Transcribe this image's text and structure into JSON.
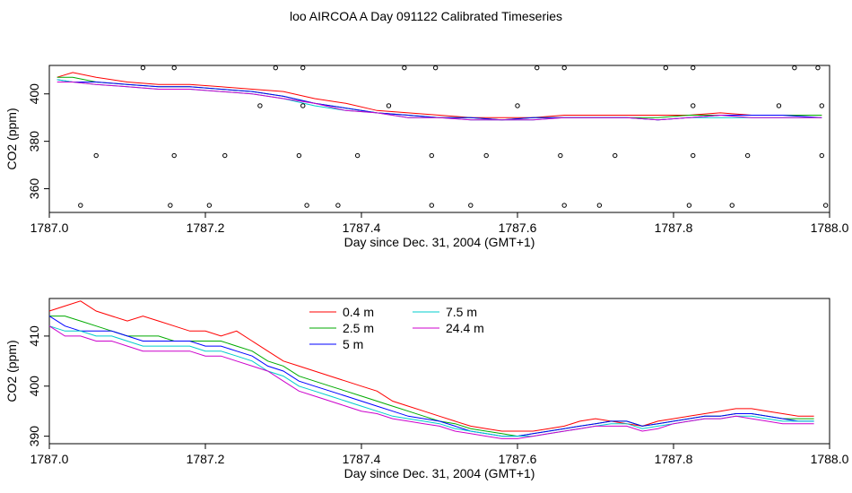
{
  "page_title": "loo AIRCOA A  Day 091122  Calibrated Timeseries",
  "chart_data": [
    {
      "type": "scatter",
      "title": "",
      "xlabel": "Day since Dec. 31, 2004 (GMT+1)",
      "ylabel": "CO2 (ppm)",
      "xlim": [
        1787.0,
        1788.0
      ],
      "ylim": [
        350,
        412
      ],
      "xticks": [
        "1787.0",
        "1787.2",
        "1787.4",
        "1787.6",
        "1787.8",
        "1788.0"
      ],
      "yticks": [
        "360",
        "380",
        "400"
      ],
      "series": [
        {
          "color": "#ff0000",
          "x": [
            1787.01,
            1787.03,
            1787.06,
            1787.1,
            1787.14,
            1787.18,
            1787.22,
            1787.26,
            1787.3,
            1787.34,
            1787.38,
            1787.42,
            1787.46,
            1787.5,
            1787.54,
            1787.58,
            1787.62,
            1787.66,
            1787.7,
            1787.74,
            1787.78,
            1787.82,
            1787.86,
            1787.9,
            1787.94,
            1787.99
          ],
          "y": [
            407,
            409,
            407,
            405,
            404,
            404,
            403,
            402,
            401,
            398,
            396,
            393,
            392,
            391,
            390,
            390,
            390,
            391,
            391,
            391,
            391,
            391,
            392,
            391,
            391,
            391
          ]
        },
        {
          "color": "#00aa00",
          "x": [
            1787.01,
            1787.03,
            1787.06,
            1787.1,
            1787.14,
            1787.18,
            1787.22,
            1787.26,
            1787.3,
            1787.34,
            1787.38,
            1787.42,
            1787.46,
            1787.5,
            1787.54,
            1787.58,
            1787.62,
            1787.66,
            1787.7,
            1787.74,
            1787.78,
            1787.82,
            1787.86,
            1787.9,
            1787.94,
            1787.99
          ],
          "y": [
            407,
            407,
            405,
            404,
            403,
            403,
            402,
            401,
            399,
            396,
            394,
            392,
            391,
            390,
            390,
            389,
            390,
            390,
            390,
            390,
            390,
            391,
            391,
            391,
            391,
            391
          ]
        },
        {
          "color": "#0000ff",
          "x": [
            1787.01,
            1787.03,
            1787.06,
            1787.1,
            1787.14,
            1787.18,
            1787.22,
            1787.26,
            1787.3,
            1787.34,
            1787.38,
            1787.42,
            1787.46,
            1787.5,
            1787.54,
            1787.58,
            1787.62,
            1787.66,
            1787.7,
            1787.74,
            1787.78,
            1787.82,
            1787.86,
            1787.9,
            1787.94,
            1787.99
          ],
          "y": [
            406,
            405,
            405,
            404,
            403,
            403,
            402,
            401,
            399,
            396,
            394,
            392,
            391,
            390,
            390,
            389,
            390,
            390,
            390,
            390,
            389,
            390,
            391,
            391,
            391,
            390
          ]
        },
        {
          "color": "#00cccc",
          "x": [
            1787.01,
            1787.03,
            1787.06,
            1787.1,
            1787.14,
            1787.18,
            1787.22,
            1787.26,
            1787.3,
            1787.34,
            1787.38,
            1787.42,
            1787.46,
            1787.5,
            1787.54,
            1787.58,
            1787.62,
            1787.66,
            1787.7,
            1787.74,
            1787.78,
            1787.82,
            1787.86,
            1787.9,
            1787.94,
            1787.99
          ],
          "y": [
            406,
            405,
            404,
            403,
            402,
            402,
            401,
            400,
            398,
            395,
            393,
            392,
            390,
            390,
            389,
            389,
            389,
            390,
            390,
            390,
            389,
            390,
            390,
            390,
            390,
            390
          ]
        },
        {
          "color": "#cc00cc",
          "x": [
            1787.01,
            1787.03,
            1787.06,
            1787.1,
            1787.14,
            1787.18,
            1787.22,
            1787.26,
            1787.3,
            1787.34,
            1787.38,
            1787.42,
            1787.46,
            1787.5,
            1787.54,
            1787.58,
            1787.62,
            1787.66,
            1787.7,
            1787.74,
            1787.78,
            1787.82,
            1787.86,
            1787.9,
            1787.94,
            1787.99
          ],
          "y": [
            405,
            405,
            404,
            403,
            402,
            402,
            401,
            400,
            398,
            396,
            393,
            392,
            390,
            390,
            389,
            389,
            389,
            390,
            390,
            390,
            389,
            390,
            391,
            390,
            390,
            390
          ]
        }
      ],
      "markers": {
        "x": [
          1787.04,
          1787.06,
          1787.12,
          1787.155,
          1787.16,
          1787.16,
          1787.205,
          1787.225,
          1787.27,
          1787.29,
          1787.32,
          1787.325,
          1787.325,
          1787.33,
          1787.37,
          1787.395,
          1787.435,
          1787.455,
          1787.49,
          1787.49,
          1787.495,
          1787.54,
          1787.56,
          1787.6,
          1787.625,
          1787.655,
          1787.66,
          1787.66,
          1787.705,
          1787.725,
          1787.79,
          1787.82,
          1787.825,
          1787.825,
          1787.825,
          1787.875,
          1787.895,
          1787.935,
          1787.955,
          1787.985,
          1787.99,
          1787.99,
          1787.995
        ],
        "y": [
          353,
          374,
          411,
          353,
          374,
          411,
          353,
          374,
          395,
          411,
          374,
          395,
          411,
          353,
          353,
          374,
          395,
          411,
          353,
          374,
          411,
          353,
          374,
          395,
          411,
          374,
          411,
          353,
          353,
          374,
          411,
          353,
          374,
          395,
          411,
          353,
          374,
          395,
          411,
          411,
          395,
          374,
          353
        ]
      }
    },
    {
      "type": "line",
      "title": "",
      "xlabel": "Day since Dec. 31, 2004 (GMT+1)",
      "ylabel": "CO2 (ppm)",
      "xlim": [
        1787.0,
        1788.0
      ],
      "ylim": [
        388.5,
        417.5
      ],
      "xticks": [
        "1787.0",
        "1787.2",
        "1787.4",
        "1787.6",
        "1787.8",
        "1788.0"
      ],
      "yticks": [
        "390",
        "400",
        "410"
      ],
      "legend": {
        "placement": "top-center",
        "columns": 2
      },
      "series": [
        {
          "name": "0.4 m",
          "color": "#ff0000",
          "x": [
            1787.0,
            1787.02,
            1787.04,
            1787.06,
            1787.08,
            1787.1,
            1787.12,
            1787.14,
            1787.16,
            1787.18,
            1787.2,
            1787.22,
            1787.24,
            1787.26,
            1787.28,
            1787.3,
            1787.32,
            1787.34,
            1787.36,
            1787.38,
            1787.4,
            1787.42,
            1787.44,
            1787.46,
            1787.48,
            1787.5,
            1787.52,
            1787.54,
            1787.56,
            1787.58,
            1787.6,
            1787.62,
            1787.64,
            1787.66,
            1787.68,
            1787.7,
            1787.72,
            1787.74,
            1787.76,
            1787.78,
            1787.8,
            1787.82,
            1787.84,
            1787.86,
            1787.88,
            1787.9,
            1787.92,
            1787.94,
            1787.96,
            1787.98
          ],
          "y": [
            415,
            416,
            417,
            415,
            414,
            413,
            414,
            413,
            412,
            411,
            411,
            410,
            411,
            409,
            407,
            405,
            404,
            403,
            402,
            401,
            400,
            399,
            397,
            396,
            395,
            394,
            393,
            392,
            391.5,
            391,
            391,
            391,
            391.5,
            392,
            393,
            393.5,
            393,
            392.5,
            392,
            393,
            393.5,
            394,
            394.5,
            395,
            395.5,
            395.5,
            395,
            394.5,
            394,
            394
          ]
        },
        {
          "name": "2.5 m",
          "color": "#00aa00",
          "x": [
            1787.0,
            1787.02,
            1787.04,
            1787.06,
            1787.08,
            1787.1,
            1787.12,
            1787.14,
            1787.16,
            1787.18,
            1787.2,
            1787.22,
            1787.24,
            1787.26,
            1787.28,
            1787.3,
            1787.32,
            1787.34,
            1787.36,
            1787.38,
            1787.4,
            1787.42,
            1787.44,
            1787.46,
            1787.48,
            1787.5,
            1787.52,
            1787.54,
            1787.56,
            1787.58,
            1787.6,
            1787.62,
            1787.64,
            1787.66,
            1787.68,
            1787.7,
            1787.72,
            1787.74,
            1787.76,
            1787.78,
            1787.8,
            1787.82,
            1787.84,
            1787.86,
            1787.88,
            1787.9,
            1787.92,
            1787.94,
            1787.96,
            1787.98
          ],
          "y": [
            414,
            414,
            413,
            412,
            411,
            410,
            410,
            410,
            409,
            409,
            409,
            409,
            408,
            407,
            405,
            404,
            402,
            401,
            400,
            399,
            398,
            397,
            396,
            395,
            394,
            393,
            392.5,
            391.5,
            391,
            390.5,
            390,
            390.5,
            391,
            391.5,
            392,
            392.5,
            393,
            393,
            392,
            392.5,
            393,
            393.5,
            394,
            394,
            394.5,
            394.5,
            394,
            393.5,
            393.5,
            393.5
          ]
        },
        {
          "name": "5 m",
          "color": "#0000ff",
          "x": [
            1787.0,
            1787.02,
            1787.04,
            1787.06,
            1787.08,
            1787.1,
            1787.12,
            1787.14,
            1787.16,
            1787.18,
            1787.2,
            1787.22,
            1787.24,
            1787.26,
            1787.28,
            1787.3,
            1787.32,
            1787.34,
            1787.36,
            1787.38,
            1787.4,
            1787.42,
            1787.44,
            1787.46,
            1787.48,
            1787.5,
            1787.52,
            1787.54,
            1787.56,
            1787.58,
            1787.6,
            1787.62,
            1787.64,
            1787.66,
            1787.68,
            1787.7,
            1787.72,
            1787.74,
            1787.76,
            1787.78,
            1787.8,
            1787.82,
            1787.84,
            1787.86,
            1787.88,
            1787.9,
            1787.92,
            1787.94,
            1787.96,
            1787.98
          ],
          "y": [
            414,
            412,
            411,
            411,
            411,
            410,
            409,
            409,
            409,
            409,
            408,
            408,
            407,
            406,
            404,
            403,
            401,
            400,
            399,
            398,
            397,
            396,
            395,
            394,
            393.5,
            393,
            392,
            391,
            390.5,
            390,
            390,
            390.5,
            391,
            391.5,
            392,
            392.5,
            393,
            393,
            392,
            392.5,
            393,
            393.5,
            394,
            394,
            394.5,
            394.5,
            394,
            393.5,
            393,
            393
          ]
        },
        {
          "name": "7.5 m",
          "color": "#00cccc",
          "x": [
            1787.0,
            1787.02,
            1787.04,
            1787.06,
            1787.08,
            1787.1,
            1787.12,
            1787.14,
            1787.16,
            1787.18,
            1787.2,
            1787.22,
            1787.24,
            1787.26,
            1787.28,
            1787.3,
            1787.32,
            1787.34,
            1787.36,
            1787.38,
            1787.4,
            1787.42,
            1787.44,
            1787.46,
            1787.48,
            1787.5,
            1787.52,
            1787.54,
            1787.56,
            1787.58,
            1787.6,
            1787.62,
            1787.64,
            1787.66,
            1787.68,
            1787.7,
            1787.72,
            1787.74,
            1787.76,
            1787.78,
            1787.8,
            1787.82,
            1787.84,
            1787.86,
            1787.88,
            1787.9,
            1787.92,
            1787.94,
            1787.96,
            1787.98
          ],
          "y": [
            412,
            411,
            411,
            410,
            410,
            409,
            408,
            408,
            408,
            408,
            407,
            407,
            406,
            405,
            403,
            402,
            400,
            399,
            398,
            397,
            396,
            395,
            394,
            393.5,
            393,
            392.5,
            391.5,
            391,
            390.5,
            390,
            390,
            390,
            390.5,
            391,
            391.5,
            392,
            392.5,
            392.5,
            391.5,
            392,
            392.5,
            393,
            393.5,
            393.5,
            394,
            394,
            393.5,
            393,
            393,
            393
          ]
        },
        {
          "name": "24.4 m",
          "color": "#cc00cc",
          "x": [
            1787.0,
            1787.02,
            1787.04,
            1787.06,
            1787.08,
            1787.1,
            1787.12,
            1787.14,
            1787.16,
            1787.18,
            1787.2,
            1787.22,
            1787.24,
            1787.26,
            1787.28,
            1787.3,
            1787.32,
            1787.34,
            1787.36,
            1787.38,
            1787.4,
            1787.42,
            1787.44,
            1787.46,
            1787.48,
            1787.5,
            1787.52,
            1787.54,
            1787.56,
            1787.58,
            1787.6,
            1787.62,
            1787.64,
            1787.66,
            1787.68,
            1787.7,
            1787.72,
            1787.74,
            1787.76,
            1787.78,
            1787.8,
            1787.82,
            1787.84,
            1787.86,
            1787.88,
            1787.9,
            1787.92,
            1787.94,
            1787.96,
            1787.98
          ],
          "y": [
            412,
            410,
            410,
            409,
            409,
            408,
            407,
            407,
            407,
            407,
            406,
            406,
            405,
            404,
            403,
            401,
            399,
            398,
            397,
            396,
            395,
            394.5,
            393.5,
            393,
            392.5,
            392,
            391,
            390.5,
            390,
            389.5,
            389.5,
            390,
            390.5,
            391,
            391.5,
            392,
            392,
            392,
            391,
            391.5,
            392.5,
            393,
            393.5,
            393.5,
            394,
            393.5,
            393,
            392.5,
            392.5,
            392.5
          ]
        }
      ]
    }
  ]
}
